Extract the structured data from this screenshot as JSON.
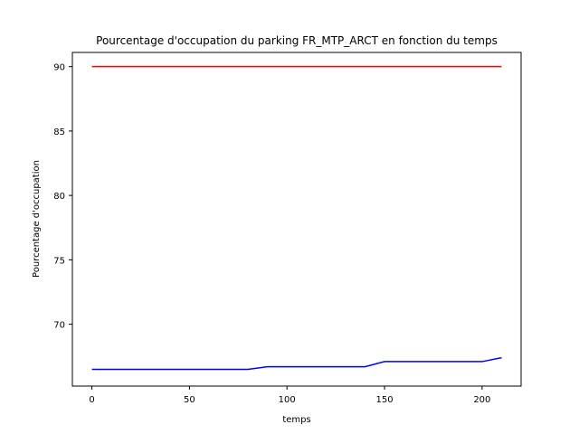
{
  "chart_data": {
    "type": "line",
    "title": "Pourcentage d'occupation du parking FR_MTP_ARCT en fonction du temps",
    "xlabel": "temps",
    "ylabel": "Pourcentage d'occupation",
    "xlim": [
      -10,
      220
    ],
    "ylim": [
      65.2,
      91.1
    ],
    "xticks": [
      0,
      50,
      100,
      150,
      200
    ],
    "yticks": [
      70,
      75,
      80,
      85,
      90
    ],
    "grid": false,
    "series": [
      {
        "color": "#ff0000",
        "x": [
          0,
          10,
          20,
          30,
          40,
          50,
          60,
          70,
          80,
          90,
          100,
          110,
          120,
          130,
          140,
          150,
          160,
          170,
          180,
          190,
          200,
          210
        ],
        "y": [
          90,
          90,
          90,
          90,
          90,
          90,
          90,
          90,
          90,
          90,
          90,
          90,
          90,
          90,
          90,
          90,
          90,
          90,
          90,
          90,
          90,
          90
        ]
      },
      {
        "color": "#0000ff",
        "x": [
          0,
          10,
          20,
          30,
          40,
          50,
          60,
          70,
          80,
          90,
          100,
          110,
          120,
          130,
          140,
          150,
          160,
          170,
          180,
          190,
          200,
          210
        ],
        "y": [
          66.5,
          66.5,
          66.5,
          66.5,
          66.5,
          66.5,
          66.5,
          66.5,
          66.5,
          66.7,
          66.7,
          66.7,
          66.7,
          66.7,
          66.7,
          67.1,
          67.1,
          67.1,
          67.1,
          67.1,
          67.1,
          67.4
        ]
      }
    ]
  }
}
